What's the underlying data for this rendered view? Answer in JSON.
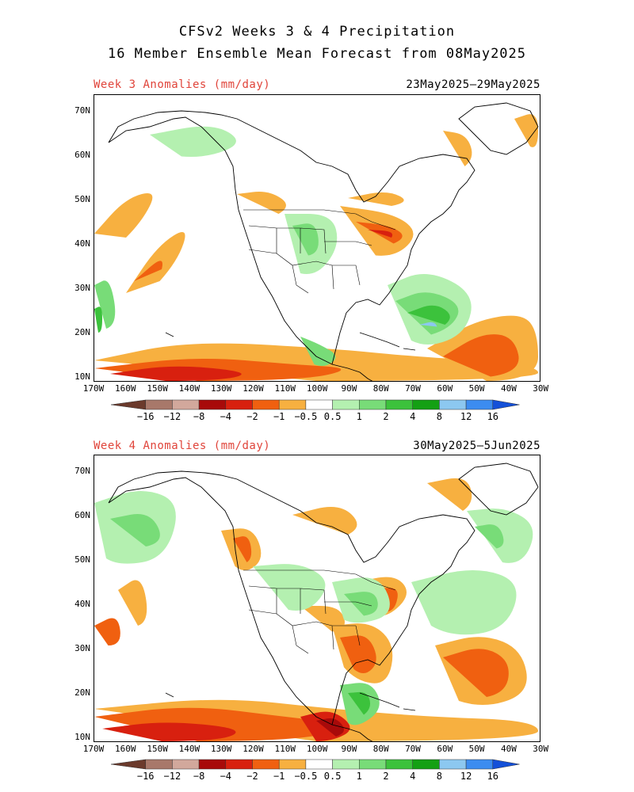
{
  "title_line1": "CFSv2 Weeks 3 & 4 Precipitation",
  "title_line2": "16 Member Ensemble Mean Forecast from 08May2025",
  "panels": [
    {
      "label": "Week 3 Anomalies (mm/day)",
      "dates": "23May2025–29May2025"
    },
    {
      "label": "Week 4 Anomalies (mm/day)",
      "dates": "30May2025–5Jun2025"
    }
  ],
  "lat_labels": [
    "70N",
    "60N",
    "50N",
    "40N",
    "30N",
    "20N",
    "10N"
  ],
  "lon_labels": [
    "170W",
    "160W",
    "150W",
    "140W",
    "130W",
    "120W",
    "110W",
    "100W",
    "90W",
    "80W",
    "70W",
    "60W",
    "50W",
    "40W",
    "30W"
  ],
  "colorbar": {
    "labels": [
      "−16",
      "−12",
      "−8",
      "−4",
      "−2",
      "−1",
      "−0.5",
      "0.5",
      "1",
      "2",
      "4",
      "8",
      "12",
      "16"
    ],
    "colors": [
      "#6b3a2c",
      "#a8786a",
      "#d2a89c",
      "#a80a0a",
      "#d8200f",
      "#f06010",
      "#f7b040",
      "#ffffff",
      "#b4f0b0",
      "#78dc78",
      "#3cc23c",
      "#14a014",
      "#8cc8f0",
      "#3c8cf0",
      "#1450d8"
    ]
  }
}
